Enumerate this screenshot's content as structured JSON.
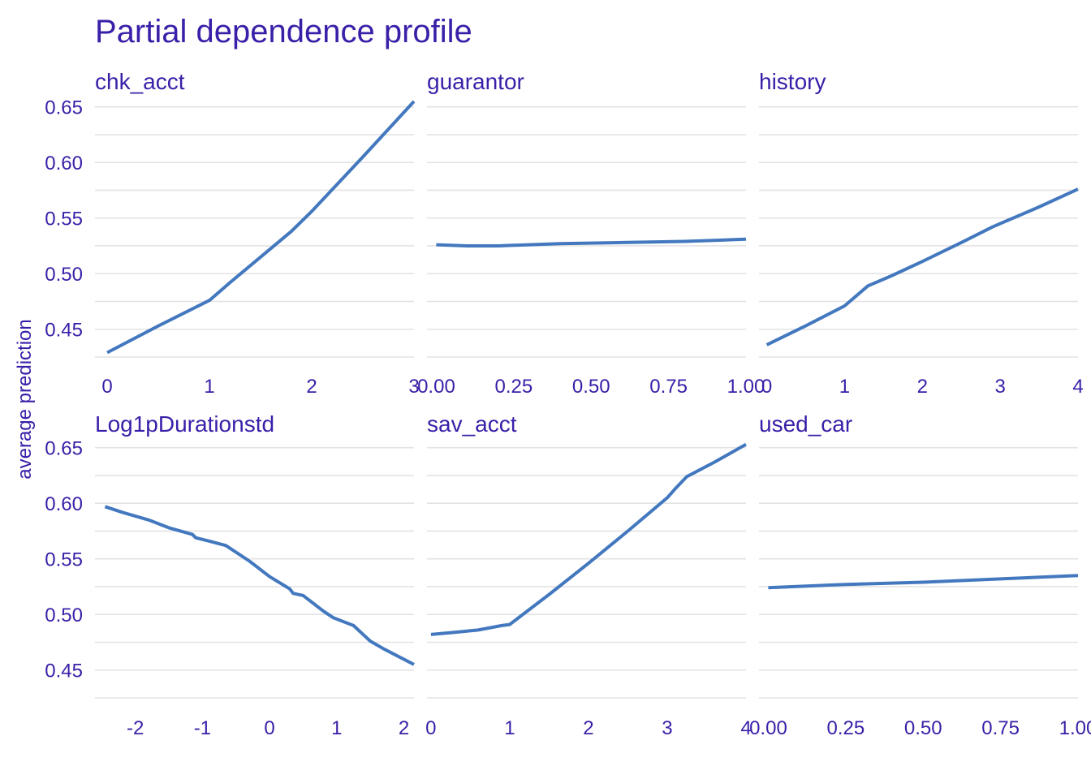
{
  "colors": {
    "text": "#3a1fa8",
    "line": "#4378bf",
    "grid": "#e3e3e3"
  },
  "chart_data": {
    "type": "line",
    "title": "Partial dependence profile",
    "ylabel": "average prediction",
    "ylim": [
      0.425,
      0.66
    ],
    "yticks": [
      0.45,
      0.5,
      0.55,
      0.6,
      0.65
    ],
    "ytick_labels": [
      "0.45",
      "0.50",
      "0.55",
      "0.60",
      "0.65"
    ],
    "grid": true,
    "panels": [
      {
        "name": "chk_acct",
        "xlim": [
          -0.12,
          3.0
        ],
        "xticks": [
          0,
          1,
          2,
          3
        ],
        "xtick_labels": [
          "0",
          "1",
          "2",
          "3"
        ],
        "x": [
          0,
          0.5,
          1.0,
          1.2,
          1.5,
          1.8,
          2.0,
          2.5,
          3.0
        ],
        "y": [
          0.429,
          0.453,
          0.476,
          0.492,
          0.515,
          0.538,
          0.556,
          0.605,
          0.655
        ]
      },
      {
        "name": "guarantor",
        "xlim": [
          -0.03,
          1.0
        ],
        "xticks": [
          0,
          0.25,
          0.5,
          0.75,
          1.0
        ],
        "xtick_labels": [
          "0.00",
          "0.25",
          "0.50",
          "0.75",
          "1.00"
        ],
        "x": [
          0,
          0.1,
          0.2,
          0.4,
          0.6,
          0.8,
          1.0
        ],
        "y": [
          0.526,
          0.525,
          0.525,
          0.527,
          0.528,
          0.529,
          0.531
        ]
      },
      {
        "name": "history",
        "xlim": [
          -0.1,
          4.0
        ],
        "xticks": [
          0,
          1,
          2,
          3,
          4
        ],
        "xtick_labels": [
          "0",
          "1",
          "2",
          "3",
          "4"
        ],
        "x": [
          0,
          0.5,
          1.0,
          1.3,
          1.6,
          2.0,
          2.5,
          2.9,
          3.0,
          3.5,
          4.0
        ],
        "y": [
          0.436,
          0.453,
          0.471,
          0.489,
          0.498,
          0.511,
          0.528,
          0.542,
          0.545,
          0.56,
          0.576
        ]
      },
      {
        "name": "Log1pDurationstd",
        "xlim": [
          -2.6,
          2.15
        ],
        "xticks": [
          -2,
          -1,
          0,
          1,
          2
        ],
        "xtick_labels": [
          "-2",
          "-1",
          "0",
          "1",
          "2"
        ],
        "x": [
          -2.45,
          -2.2,
          -1.8,
          -1.5,
          -1.15,
          -1.1,
          -0.9,
          -0.65,
          -0.3,
          0.0,
          0.3,
          0.35,
          0.5,
          0.8,
          0.95,
          1.25,
          1.5,
          1.7,
          2.15
        ],
        "y": [
          0.597,
          0.592,
          0.585,
          0.578,
          0.572,
          0.569,
          0.566,
          0.562,
          0.548,
          0.534,
          0.523,
          0.519,
          0.517,
          0.503,
          0.497,
          0.49,
          0.476,
          0.469,
          0.455
        ]
      },
      {
        "name": "sav_acct",
        "xlim": [
          -0.05,
          4.0
        ],
        "xticks": [
          0,
          1,
          2,
          3,
          4
        ],
        "xtick_labels": [
          "0",
          "1",
          "2",
          "3",
          "4"
        ],
        "x": [
          0,
          0.3,
          0.6,
          0.9,
          1.0,
          1.5,
          2.0,
          2.5,
          3.0,
          3.1,
          3.25,
          3.6,
          4.0
        ],
        "y": [
          0.482,
          0.484,
          0.486,
          0.49,
          0.491,
          0.518,
          0.546,
          0.575,
          0.605,
          0.613,
          0.624,
          0.637,
          0.653
        ]
      },
      {
        "name": "used_car",
        "xlim": [
          -0.03,
          1.0
        ],
        "xticks": [
          0,
          0.25,
          0.5,
          0.75,
          1.0
        ],
        "xtick_labels": [
          "0.00",
          "0.25",
          "0.50",
          "0.75",
          "1.00"
        ],
        "x": [
          0,
          0.25,
          0.5,
          0.75,
          1.0
        ],
        "y": [
          0.524,
          0.527,
          0.529,
          0.532,
          0.535
        ]
      }
    ]
  }
}
